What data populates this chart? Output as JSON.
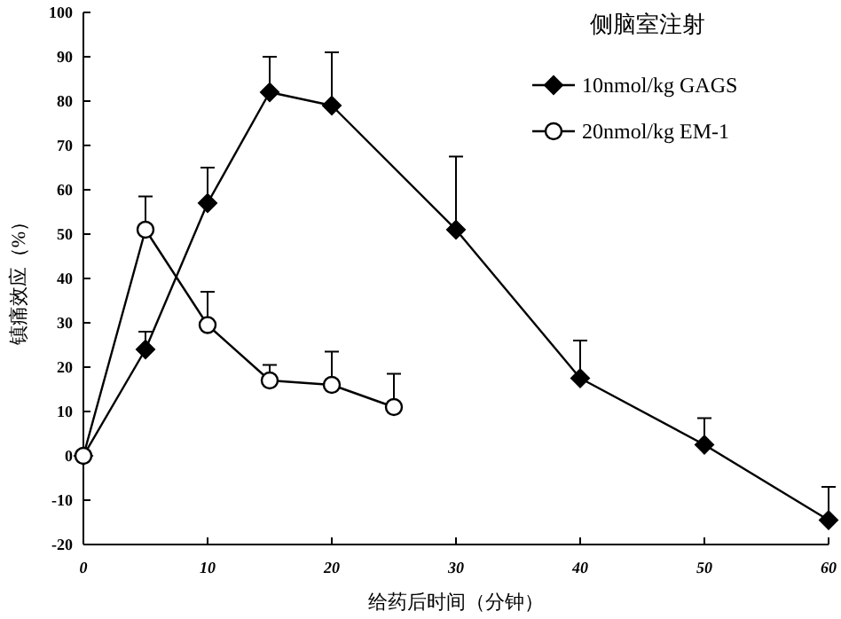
{
  "chart_data": {
    "type": "line",
    "legend_title": "侧脑室注射",
    "xlabel": "给药后时间（分钟）",
    "ylabel": "镇痛效应（%）",
    "legend": "top right",
    "grid": false,
    "line_style": "solid",
    "xlim": [
      0,
      60
    ],
    "xticks": [
      0,
      10,
      20,
      30,
      40,
      50,
      60
    ],
    "ylim": [
      -20,
      100
    ],
    "yticks": [
      -20,
      -10,
      0,
      10,
      20,
      30,
      40,
      50,
      60,
      70,
      80,
      90,
      100
    ],
    "series": [
      {
        "name": "10nmol/kg GAGS",
        "color": "#000000",
        "marker": "diamond",
        "x": [
          0,
          5,
          10,
          15,
          20,
          30,
          40,
          50,
          60
        ],
        "values": [
          0,
          24,
          57,
          82,
          79,
          51,
          17.5,
          2.5,
          -14.5
        ],
        "errors": [
          null,
          [
            24,
            28
          ],
          [
            57,
            65
          ],
          [
            82,
            90
          ],
          [
            79,
            91
          ],
          [
            51,
            67.5
          ],
          [
            17.5,
            26
          ],
          [
            2.5,
            8.5
          ],
          [
            -14.5,
            -7
          ]
        ]
      },
      {
        "name": "20nmol/kg EM-1",
        "color": "#000000",
        "marker": "circle",
        "x": [
          0,
          5,
          10,
          15,
          20,
          25
        ],
        "values": [
          0,
          51,
          29.5,
          17,
          16,
          11
        ],
        "errors": [
          null,
          [
            51,
            58.5
          ],
          [
            29.5,
            37
          ],
          [
            17,
            20.5
          ],
          [
            16,
            23.5
          ],
          [
            11,
            18.5
          ]
        ]
      }
    ]
  }
}
